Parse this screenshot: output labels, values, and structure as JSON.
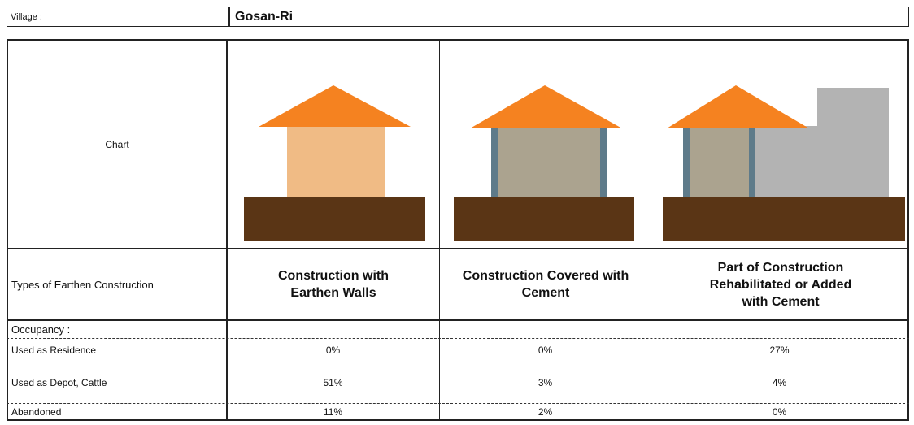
{
  "village": {
    "label": "Village :",
    "value": "Gosan-Ri"
  },
  "table": {
    "chart_label": "Chart",
    "header_label": "Types of Earthen Construction",
    "columns": [
      "Construction with Earthen Walls",
      "Construction Covered with Cement",
      "Part of Construction Rehabilitated or Added with Cement"
    ],
    "occupancy_label": "Occupancy :",
    "rows": [
      {
        "label": "Used as Residence",
        "values": [
          "0%",
          "0%",
          "27%"
        ]
      },
      {
        "label": "Used as Depot, Cattle",
        "values": [
          "51%",
          "3%",
          "4%"
        ]
      },
      {
        "label": "Abandoned",
        "values": [
          "11%",
          "2%",
          "0%"
        ]
      }
    ]
  }
}
